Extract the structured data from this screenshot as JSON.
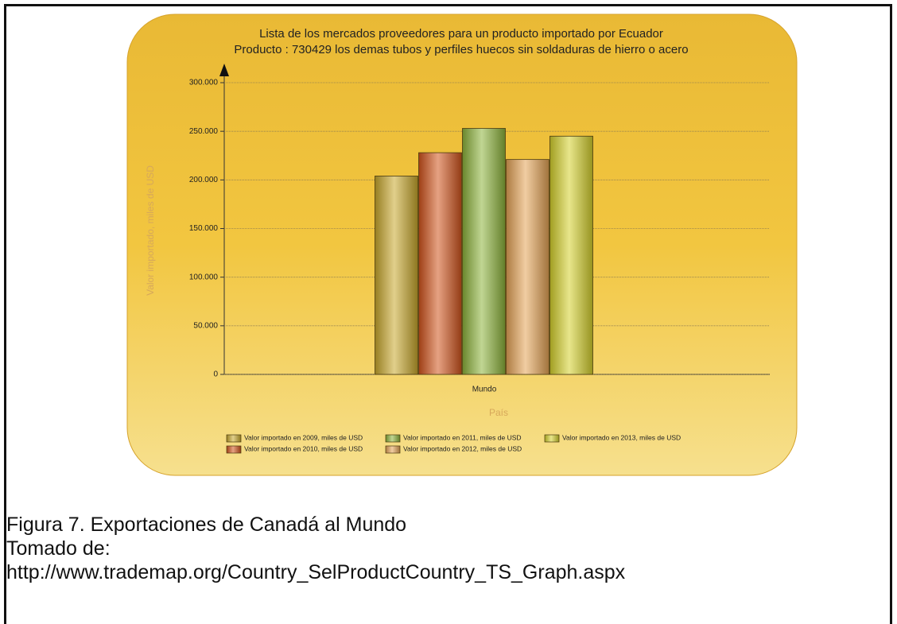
{
  "chart_data": {
    "type": "bar",
    "title": "Lista de los mercados proveedores para un producto importado por Ecuador",
    "subtitle": "Producto : 730429 los demas tubos y perfiles huecos sin soldaduras de hierro o acero",
    "x_label": "País",
    "y_label": "Valor importado, miles de USD",
    "categories": [
      "Mundo"
    ],
    "series": [
      {
        "name": "Valor importado en 2009, miles de USD",
        "color": "#c9a82c",
        "values": [
          204000
        ]
      },
      {
        "name": "Valor importado en 2010, miles de USD",
        "color": "#d2541c",
        "values": [
          228000
        ]
      },
      {
        "name": "Valor importado en 2011, miles de USD",
        "color": "#8db43a",
        "values": [
          253000
        ]
      },
      {
        "name": "Valor importado en 2012, miles de USD",
        "color": "#e6a456",
        "values": [
          221000
        ]
      },
      {
        "name": "Valor importado en 2013, miles de USD",
        "color": "#d6d22c",
        "values": [
          245000
        ]
      }
    ],
    "ylim": [
      0,
      300000
    ],
    "yticks": [
      0,
      {
        "value": 50000,
        "label": "50.000"
      },
      {
        "value": 100000,
        "label": "100.000"
      },
      {
        "value": 150000,
        "label": "150.000"
      },
      {
        "value": 200000,
        "label": "200.000"
      },
      {
        "value": 250000,
        "label": "250.000"
      },
      {
        "value": 300000,
        "label": "300.000"
      }
    ],
    "grid": true
  },
  "caption": [
    "Figura 7. Exportaciones de Canadá al Mundo",
    "Tomado de:",
    "http://www.trademap.org/Country_SelProductCountry_TS_Graph.aspx"
  ]
}
